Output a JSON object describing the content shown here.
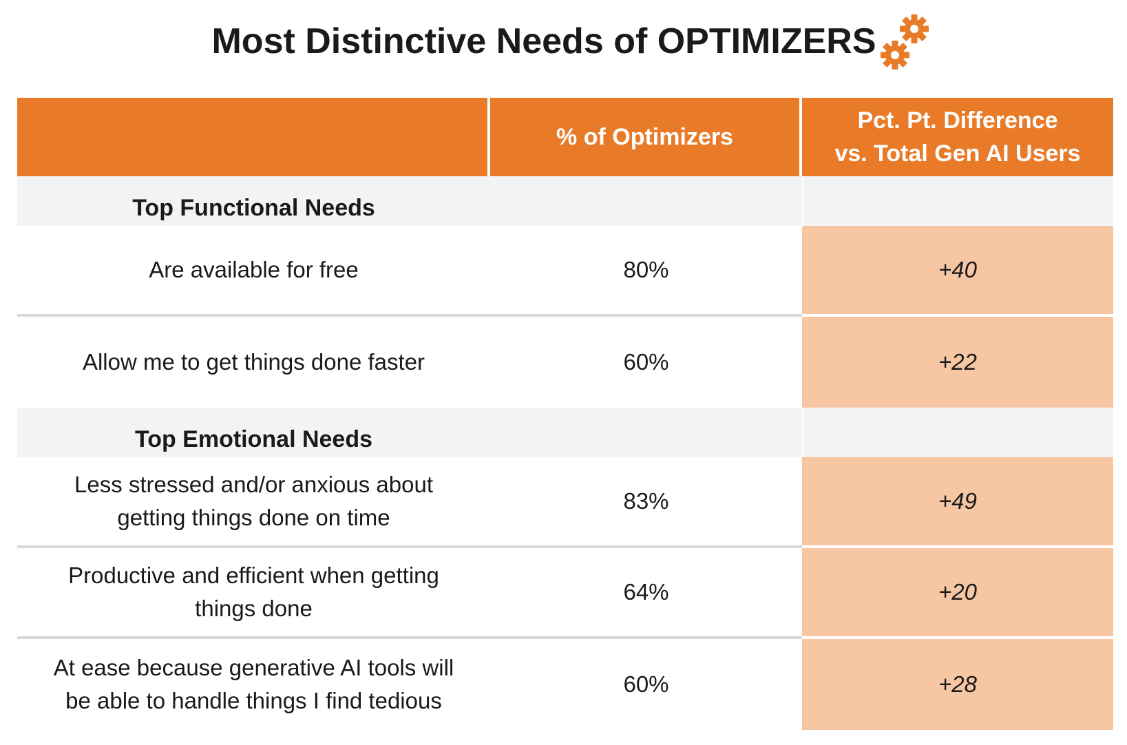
{
  "title": "Most Distinctive Needs of OPTIMIZERS",
  "title_icon": "gears-icon",
  "colors": {
    "accent": "#e97b28",
    "section_bg": "#f3f3f4",
    "highlight_bg": "#f7c7a4"
  },
  "table": {
    "headers": {
      "col1": "",
      "col2": "% of Optimizers",
      "col3_line1": "Pct. Pt. Difference",
      "col3_line2": "vs. Total Gen AI Users"
    },
    "sections": [
      {
        "label": "Top Functional Needs",
        "rows": [
          {
            "need": "Are available for free",
            "pct": "80%",
            "diff": "+40"
          },
          {
            "need": "Allow me to get things done faster",
            "pct": "60%",
            "diff": "+22"
          }
        ]
      },
      {
        "label": "Top Emotional Needs",
        "rows": [
          {
            "need_line1": "Less stressed and/or anxious about",
            "need_line2": "getting things done on time",
            "pct": "83%",
            "diff": "+49"
          },
          {
            "need_line1": "Productive and efficient when getting",
            "need_line2": "things done",
            "pct": "64%",
            "diff": "+20"
          },
          {
            "need_line1": "At ease because generative AI tools will",
            "need_line2": "be able to handle things I find tedious",
            "pct": "60%",
            "diff": "+28"
          }
        ]
      }
    ]
  }
}
